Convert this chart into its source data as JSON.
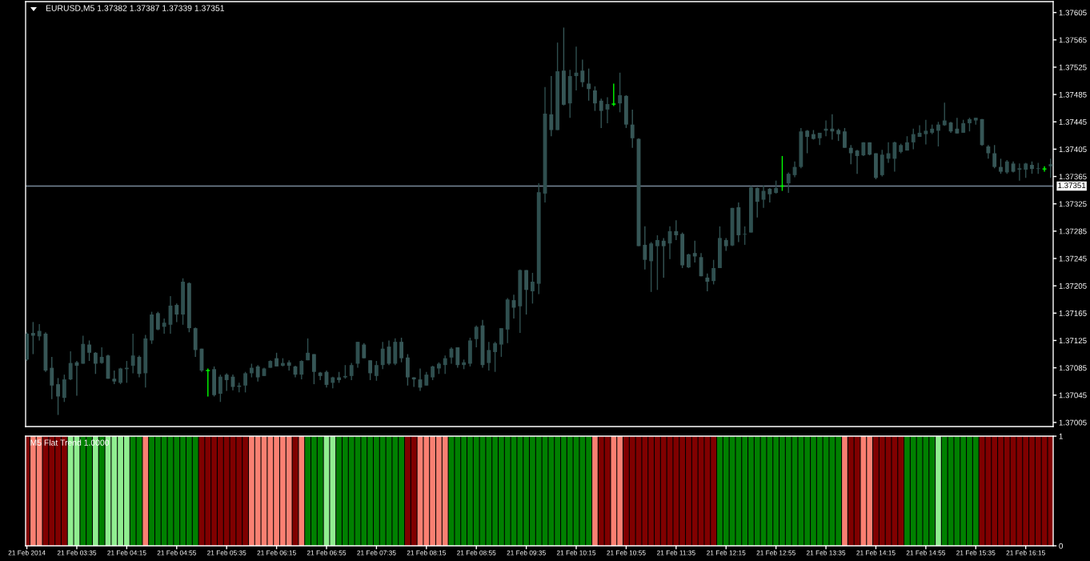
{
  "chart_data": [
    {
      "type": "candlestick",
      "title": "EURUSD,M5 1.37382 1.37387 1.37339 1.37351",
      "x": [
        "2014-02-21T02:55",
        "2014-02-21T03:00",
        "2014-02-21T03:05",
        "2014-02-21T03:10",
        "2014-02-21T03:15",
        "2014-02-21T03:20",
        "2014-02-21T03:25",
        "2014-02-21T03:30",
        "2014-02-21T03:35",
        "2014-02-21T03:40",
        "2014-02-21T03:45",
        "2014-02-21T03:50",
        "2014-02-21T03:55",
        "2014-02-21T04:00",
        "2014-02-21T04:05",
        "2014-02-21T04:10",
        "2014-02-21T04:15",
        "2014-02-21T04:20",
        "2014-02-21T04:25",
        "2014-02-21T04:30",
        "2014-02-21T04:35",
        "2014-02-21T04:40",
        "2014-02-21T04:45",
        "2014-02-21T04:50",
        "2014-02-21T04:55",
        "2014-02-21T05:00",
        "2014-02-21T05:05",
        "2014-02-21T05:10",
        "2014-02-21T05:15",
        "2014-02-21T05:20",
        "2014-02-21T05:25",
        "2014-02-21T05:30",
        "2014-02-21T05:35",
        "2014-02-21T05:40",
        "2014-02-21T05:45",
        "2014-02-21T05:50",
        "2014-02-21T05:55",
        "2014-02-21T06:00",
        "2014-02-21T06:05",
        "2014-02-21T06:10",
        "2014-02-21T06:15",
        "2014-02-21T06:20",
        "2014-02-21T06:25",
        "2014-02-21T06:30",
        "2014-02-21T06:35",
        "2014-02-21T06:40",
        "2014-02-21T06:45",
        "2014-02-21T06:50",
        "2014-02-21T06:55",
        "2014-02-21T07:00",
        "2014-02-21T07:05",
        "2014-02-21T07:10",
        "2014-02-21T07:15",
        "2014-02-21T07:20",
        "2014-02-21T07:25",
        "2014-02-21T07:30",
        "2014-02-21T07:35",
        "2014-02-21T07:40",
        "2014-02-21T07:45",
        "2014-02-21T07:50",
        "2014-02-21T07:55",
        "2014-02-21T08:00",
        "2014-02-21T08:05",
        "2014-02-21T08:10",
        "2014-02-21T08:15",
        "2014-02-21T08:20",
        "2014-02-21T08:25",
        "2014-02-21T08:30",
        "2014-02-21T08:35",
        "2014-02-21T08:40",
        "2014-02-21T08:45",
        "2014-02-21T08:50",
        "2014-02-21T08:55",
        "2014-02-21T09:00",
        "2014-02-21T09:05",
        "2014-02-21T09:10",
        "2014-02-21T09:15",
        "2014-02-21T09:20",
        "2014-02-21T09:25",
        "2014-02-21T09:30",
        "2014-02-21T09:35",
        "2014-02-21T09:40",
        "2014-02-21T09:45",
        "2014-02-21T09:50",
        "2014-02-21T09:55",
        "2014-02-21T10:00",
        "2014-02-21T10:05",
        "2014-02-21T10:10",
        "2014-02-21T10:15",
        "2014-02-21T10:20",
        "2014-02-21T10:25",
        "2014-02-21T10:30",
        "2014-02-21T10:35",
        "2014-02-21T10:40",
        "2014-02-21T10:45",
        "2014-02-21T10:50",
        "2014-02-21T10:55",
        "2014-02-21T11:00",
        "2014-02-21T11:05",
        "2014-02-21T11:10",
        "2014-02-21T11:15",
        "2014-02-21T11:20",
        "2014-02-21T11:25",
        "2014-02-21T11:30",
        "2014-02-21T11:35",
        "2014-02-21T11:40",
        "2014-02-21T11:45",
        "2014-02-21T11:50",
        "2014-02-21T11:55",
        "2014-02-21T12:00",
        "2014-02-21T12:05",
        "2014-02-21T12:10",
        "2014-02-21T12:15",
        "2014-02-21T12:20",
        "2014-02-21T12:25",
        "2014-02-21T12:30",
        "2014-02-21T12:35",
        "2014-02-21T12:40",
        "2014-02-21T12:45",
        "2014-02-21T12:50",
        "2014-02-21T12:55",
        "2014-02-21T13:00",
        "2014-02-21T13:05",
        "2014-02-21T13:10",
        "2014-02-21T13:15",
        "2014-02-21T13:20",
        "2014-02-21T13:25",
        "2014-02-21T13:30",
        "2014-02-21T13:35",
        "2014-02-21T13:40",
        "2014-02-21T13:45",
        "2014-02-21T13:50",
        "2014-02-21T13:55",
        "2014-02-21T14:00",
        "2014-02-21T14:05",
        "2014-02-21T14:10",
        "2014-02-21T14:15",
        "2014-02-21T14:20",
        "2014-02-21T14:25",
        "2014-02-21T14:30",
        "2014-02-21T14:35",
        "2014-02-21T14:40",
        "2014-02-21T14:45",
        "2014-02-21T14:50",
        "2014-02-21T14:55",
        "2014-02-21T15:00",
        "2014-02-21T15:05",
        "2014-02-21T15:10",
        "2014-02-21T15:15",
        "2014-02-21T15:20",
        "2014-02-21T15:25",
        "2014-02-21T15:30",
        "2014-02-21T15:35",
        "2014-02-21T15:40",
        "2014-02-21T15:45",
        "2014-02-21T15:50",
        "2014-02-21T15:55",
        "2014-02-21T16:00",
        "2014-02-21T16:05",
        "2014-02-21T16:10",
        "2014-02-21T16:15",
        "2014-02-21T16:20",
        "2014-02-21T16:25",
        "2014-02-21T16:30",
        "2014-02-21T16:35"
      ],
      "ohlc": [
        [
          1.37097,
          1.37137,
          1.37095,
          1.37135
        ],
        [
          1.37136,
          1.37152,
          1.37105,
          1.37132
        ],
        [
          1.37131,
          1.37149,
          1.37125,
          1.37139
        ],
        [
          1.37135,
          1.37137,
          1.37079,
          1.37081
        ],
        [
          1.37085,
          1.37101,
          1.37039,
          1.37059
        ],
        [
          1.37061,
          1.3707,
          1.37016,
          1.37043
        ],
        [
          1.37041,
          1.37075,
          1.37035,
          1.37068
        ],
        [
          1.37068,
          1.37109,
          1.37067,
          1.37092
        ],
        [
          1.37093,
          1.37095,
          1.37044,
          1.37088
        ],
        [
          1.37091,
          1.37132,
          1.37091,
          1.3712
        ],
        [
          1.37119,
          1.37125,
          1.37095,
          1.37107
        ],
        [
          1.37107,
          1.37108,
          1.37076,
          1.37091
        ],
        [
          1.37092,
          1.37115,
          1.37091,
          1.37101
        ],
        [
          1.37103,
          1.37104,
          1.37069,
          1.37069
        ],
        [
          1.37069,
          1.37081,
          1.37061,
          1.37065
        ],
        [
          1.37063,
          1.37085,
          1.37061,
          1.37084
        ],
        [
          1.37083,
          1.37095,
          1.37063,
          1.37085
        ],
        [
          1.37088,
          1.37135,
          1.37077,
          1.37103
        ],
        [
          1.37101,
          1.37103,
          1.37071,
          1.37076
        ],
        [
          1.37077,
          1.37133,
          1.37056,
          1.37128
        ],
        [
          1.37125,
          1.37167,
          1.3712,
          1.37163
        ],
        [
          1.37165,
          1.37167,
          1.3714,
          1.37141
        ],
        [
          1.37145,
          1.37157,
          1.37135,
          1.37151
        ],
        [
          1.37148,
          1.3719,
          1.37135,
          1.37176
        ],
        [
          1.37177,
          1.37179,
          1.37152,
          1.37163
        ],
        [
          1.37163,
          1.37216,
          1.37148,
          1.37211
        ],
        [
          1.37209,
          1.3721,
          1.37137,
          1.37143
        ],
        [
          1.37143,
          1.37144,
          1.37101,
          1.37111
        ],
        [
          1.37113,
          1.37113,
          1.37079,
          1.37081
        ],
        [
          1.37081,
          1.37084,
          1.37043,
          1.37081
        ],
        [
          1.37083,
          1.37087,
          1.37043,
          1.37045
        ],
        [
          1.37047,
          1.37075,
          1.37035,
          1.37072
        ],
        [
          1.37075,
          1.37077,
          1.37051,
          1.37067
        ],
        [
          1.37072,
          1.37075,
          1.37052,
          1.37057
        ],
        [
          1.37057,
          1.37063,
          1.37049,
          1.37059
        ],
        [
          1.37059,
          1.37079,
          1.37049,
          1.37077
        ],
        [
          1.37077,
          1.37091,
          1.37071,
          1.37085
        ],
        [
          1.37087,
          1.37089,
          1.37065,
          1.37071
        ],
        [
          1.37073,
          1.37085,
          1.37073,
          1.37084
        ],
        [
          1.37085,
          1.37096,
          1.37085,
          1.37095
        ],
        [
          1.37099,
          1.37107,
          1.37087,
          1.37087
        ],
        [
          1.37088,
          1.37099,
          1.37087,
          1.37092
        ],
        [
          1.37093,
          1.37096,
          1.37081,
          1.37088
        ],
        [
          1.37087,
          1.37088,
          1.37071,
          1.37075
        ],
        [
          1.37075,
          1.37096,
          1.37068,
          1.37095
        ],
        [
          1.37096,
          1.37128,
          1.37096,
          1.37107
        ],
        [
          1.37105,
          1.37105,
          1.37061,
          1.37079
        ],
        [
          1.37078,
          1.37079,
          1.37067,
          1.37073
        ],
        [
          1.37079,
          1.37081,
          1.37056,
          1.3706
        ],
        [
          1.37063,
          1.37072,
          1.37055,
          1.37071
        ],
        [
          1.37071,
          1.37079,
          1.37063,
          1.37067
        ],
        [
          1.37071,
          1.37089,
          1.37069,
          1.37073
        ],
        [
          1.37073,
          1.37092,
          1.37067,
          1.37089
        ],
        [
          1.37091,
          1.37123,
          1.37085,
          1.37123
        ],
        [
          1.37119,
          1.37121,
          1.37099,
          1.37099
        ],
        [
          1.37096,
          1.37096,
          1.37067,
          1.37077
        ],
        [
          1.37073,
          1.37095,
          1.37066,
          1.37089
        ],
        [
          1.37089,
          1.37123,
          1.37083,
          1.37113
        ],
        [
          1.37116,
          1.37125,
          1.37089,
          1.37091
        ],
        [
          1.37091,
          1.37128,
          1.37089,
          1.37123
        ],
        [
          1.37123,
          1.37129,
          1.37093,
          1.37099
        ],
        [
          1.371,
          1.37105,
          1.37059,
          1.37071
        ],
        [
          1.37071,
          1.37071,
          1.37057,
          1.37068
        ],
        [
          1.37068,
          1.37084,
          1.37051,
          1.37056
        ],
        [
          1.37059,
          1.37079,
          1.37059,
          1.37075
        ],
        [
          1.37071,
          1.37088,
          1.37067,
          1.37087
        ],
        [
          1.37084,
          1.37093,
          1.37076,
          1.37091
        ],
        [
          1.37089,
          1.37103,
          1.37076,
          1.37099
        ],
        [
          1.371,
          1.37115,
          1.37091,
          1.37113
        ],
        [
          1.37115,
          1.37115,
          1.37085,
          1.37089
        ],
        [
          1.37089,
          1.37097,
          1.37083,
          1.37093
        ],
        [
          1.37091,
          1.37129,
          1.37087,
          1.37125
        ],
        [
          1.37127,
          1.37147,
          1.37115,
          1.37145
        ],
        [
          1.37147,
          1.37155,
          1.37085,
          1.37089
        ],
        [
          1.37092,
          1.37123,
          1.37081,
          1.37111
        ],
        [
          1.37108,
          1.37123,
          1.37079,
          1.37121
        ],
        [
          1.37119,
          1.37143,
          1.37101,
          1.37143
        ],
        [
          1.37141,
          1.37187,
          1.37121,
          1.37185
        ],
        [
          1.37184,
          1.37192,
          1.37157,
          1.37173
        ],
        [
          1.37175,
          1.37229,
          1.37136,
          1.37228
        ],
        [
          1.37228,
          1.37228,
          1.37163,
          1.37199
        ],
        [
          1.37197,
          1.37224,
          1.37179,
          1.37211
        ],
        [
          1.37208,
          1.37355,
          1.37193,
          1.37342
        ],
        [
          1.3734,
          1.37496,
          1.37327,
          1.37457
        ],
        [
          1.37456,
          1.37512,
          1.37424,
          1.37433
        ],
        [
          1.37433,
          1.37561,
          1.37433,
          1.37519
        ],
        [
          1.3752,
          1.37583,
          1.37469,
          1.3747
        ],
        [
          1.37472,
          1.37521,
          1.37451,
          1.37512
        ],
        [
          1.37512,
          1.37555,
          1.37491,
          1.37517
        ],
        [
          1.3752,
          1.37536,
          1.37496,
          1.37503
        ],
        [
          1.37501,
          1.37523,
          1.37476,
          1.37493
        ],
        [
          1.37491,
          1.37497,
          1.37461,
          1.37472
        ],
        [
          1.37476,
          1.37479,
          1.37436,
          1.37461
        ],
        [
          1.37463,
          1.37481,
          1.37443,
          1.37471
        ],
        [
          1.37471,
          1.37501,
          1.37468,
          1.37471
        ],
        [
          1.37472,
          1.37517,
          1.37459,
          1.37484
        ],
        [
          1.37483,
          1.37484,
          1.37436,
          1.37441
        ],
        [
          1.37441,
          1.37463,
          1.37407,
          1.37421
        ],
        [
          1.3742,
          1.37421,
          1.37263,
          1.37263
        ],
        [
          1.37265,
          1.37292,
          1.37229,
          1.37243
        ],
        [
          1.37241,
          1.37269,
          1.37196,
          1.37267
        ],
        [
          1.37263,
          1.37279,
          1.37199,
          1.37272
        ],
        [
          1.37271,
          1.37275,
          1.37217,
          1.37263
        ],
        [
          1.37267,
          1.37292,
          1.37244,
          1.37285
        ],
        [
          1.37285,
          1.37301,
          1.37272,
          1.37279
        ],
        [
          1.37281,
          1.37283,
          1.37231,
          1.37235
        ],
        [
          1.37232,
          1.37252,
          1.37231,
          1.37251
        ],
        [
          1.37253,
          1.37271,
          1.37239,
          1.37248
        ],
        [
          1.37247,
          1.37253,
          1.37219,
          1.37219
        ],
        [
          1.37217,
          1.37223,
          1.37197,
          1.37211
        ],
        [
          1.37212,
          1.37243,
          1.37207,
          1.37231
        ],
        [
          1.37231,
          1.37292,
          1.37231,
          1.37275
        ],
        [
          1.37272,
          1.37275,
          1.37256,
          1.37263
        ],
        [
          1.37264,
          1.37319,
          1.37263,
          1.37319
        ],
        [
          1.3732,
          1.37327,
          1.37269,
          1.37279
        ],
        [
          1.3728,
          1.37292,
          1.37265,
          1.37281
        ],
        [
          1.37283,
          1.37351,
          1.37283,
          1.37349
        ],
        [
          1.37348,
          1.37349,
          1.37305,
          1.37328
        ],
        [
          1.37331,
          1.37352,
          1.37319,
          1.37344
        ],
        [
          1.37347,
          1.37348,
          1.37327,
          1.37339
        ],
        [
          1.37341,
          1.37359,
          1.3734,
          1.37348
        ],
        [
          1.37351,
          1.37395,
          1.37344,
          1.37351
        ],
        [
          1.37355,
          1.37371,
          1.37341,
          1.37369
        ],
        [
          1.37367,
          1.37387,
          1.37364,
          1.37379
        ],
        [
          1.37379,
          1.37436,
          1.37377,
          1.37431
        ],
        [
          1.37432,
          1.37433,
          1.37399,
          1.37423
        ],
        [
          1.37427,
          1.37433,
          1.37419,
          1.3742
        ],
        [
          1.37421,
          1.37429,
          1.37411,
          1.37429
        ],
        [
          1.37432,
          1.37447,
          1.37424,
          1.37435
        ],
        [
          1.37435,
          1.37456,
          1.37419,
          1.37431
        ],
        [
          1.37433,
          1.37435,
          1.37417,
          1.37427
        ],
        [
          1.37431,
          1.37436,
          1.37407,
          1.37407
        ],
        [
          1.37407,
          1.37411,
          1.37383,
          1.37399
        ],
        [
          1.37403,
          1.37404,
          1.37369,
          1.37395
        ],
        [
          1.37396,
          1.37415,
          1.37395,
          1.37415
        ],
        [
          1.37415,
          1.37415,
          1.37396,
          1.37397
        ],
        [
          1.37399,
          1.37399,
          1.37361,
          1.37363
        ],
        [
          1.37367,
          1.37404,
          1.37365,
          1.37397
        ],
        [
          1.37391,
          1.37415,
          1.37385,
          1.37399
        ],
        [
          1.37391,
          1.37416,
          1.37372,
          1.37415
        ],
        [
          1.37401,
          1.37413,
          1.37399,
          1.37411
        ],
        [
          1.37403,
          1.37424,
          1.37403,
          1.37415
        ],
        [
          1.37415,
          1.37435,
          1.37405,
          1.37427
        ],
        [
          1.37423,
          1.3744,
          1.37423,
          1.37429
        ],
        [
          1.37427,
          1.37448,
          1.37412,
          1.37432
        ],
        [
          1.37429,
          1.37441,
          1.37427,
          1.37435
        ],
        [
          1.37432,
          1.37445,
          1.37409,
          1.37441
        ],
        [
          1.3744,
          1.37473,
          1.37439,
          1.37447
        ],
        [
          1.37444,
          1.37445,
          1.37429,
          1.37431
        ],
        [
          1.37435,
          1.37451,
          1.37428,
          1.37428
        ],
        [
          1.37429,
          1.37448,
          1.37429,
          1.37443
        ],
        [
          1.37443,
          1.37451,
          1.37431,
          1.37449
        ],
        [
          1.37447,
          1.37451,
          1.37441,
          1.37451
        ],
        [
          1.37449,
          1.37449,
          1.3741,
          1.37411
        ],
        [
          1.37409,
          1.37411,
          1.37391,
          1.37399
        ],
        [
          1.37399,
          1.37411,
          1.37377,
          1.37379
        ],
        [
          1.37379,
          1.37391,
          1.37369,
          1.37372
        ],
        [
          1.37371,
          1.37389,
          1.37369,
          1.37387
        ],
        [
          1.37384,
          1.37387,
          1.37371,
          1.37372
        ],
        [
          1.37375,
          1.37384,
          1.37359,
          1.37377
        ],
        [
          1.37375,
          1.37385,
          1.37363,
          1.37384
        ],
        [
          1.37382,
          1.37387,
          1.37369,
          1.37376
        ],
        [
          1.37376,
          1.37385,
          1.37369,
          1.37377
        ],
        [
          1.37376,
          1.3738,
          1.37372,
          1.37376
        ],
        [
          1.3738,
          1.37391,
          1.37363,
          1.37383
        ]
      ],
      "colors": [
        "#2f4f4f",
        "#365656",
        "#2f4f4f",
        "#365656",
        "#365656",
        "#365656",
        "#2f4f4f",
        "#2f4f4f",
        "#365656",
        "#2f4f4f",
        "#365656",
        "#365656",
        "#2f4f4f",
        "#365656",
        "#365656",
        "#2f4f4f",
        "#2f4f4f",
        "#2f4f4f",
        "#365656",
        "#2f4f4f",
        "#2f4f4f",
        "#365656",
        "#2f4f4f",
        "#2f4f4f",
        "#365656",
        "#2f4f4f",
        "#365656",
        "#365656",
        "#365656",
        "#00ff00",
        "#365656",
        "#2f4f4f",
        "#365656",
        "#365656",
        "#2f4f4f",
        "#2f4f4f",
        "#2f4f4f",
        "#365656",
        "#2f4f4f",
        "#2f4f4f",
        "#365656",
        "#2f4f4f",
        "#365656",
        "#365656",
        "#2f4f4f",
        "#2f4f4f",
        "#365656",
        "#365656",
        "#365656",
        "#2f4f4f",
        "#365656",
        "#2f4f4f",
        "#2f4f4f",
        "#2f4f4f",
        "#365656",
        "#365656",
        "#2f4f4f",
        "#2f4f4f",
        "#365656",
        "#2f4f4f",
        "#365656",
        "#365656",
        "#365656",
        "#365656",
        "#2f4f4f",
        "#2f4f4f",
        "#2f4f4f",
        "#2f4f4f",
        "#2f4f4f",
        "#365656",
        "#2f4f4f",
        "#2f4f4f",
        "#2f4f4f",
        "#365656",
        "#2f4f4f",
        "#2f4f4f",
        "#2f4f4f",
        "#2f4f4f",
        "#365656",
        "#2f4f4f",
        "#365656",
        "#2f4f4f",
        "#2f4f4f",
        "#2f4f4f",
        "#365656",
        "#2f4f4f",
        "#365656",
        "#2f4f4f",
        "#2f4f4f",
        "#365656",
        "#365656",
        "#365656",
        "#365656",
        "#2f4f4f",
        "#00ff00",
        "#2f4f4f",
        "#365656",
        "#365656",
        "#365656",
        "#365656",
        "#2f4f4f",
        "#2f4f4f",
        "#365656",
        "#2f4f4f",
        "#365656",
        "#365656",
        "#2f4f4f",
        "#365656",
        "#365656",
        "#365656",
        "#2f4f4f",
        "#2f4f4f",
        "#365656",
        "#2f4f4f",
        "#365656",
        "#2f4f4f",
        "#2f4f4f",
        "#365656",
        "#2f4f4f",
        "#365656",
        "#2f4f4f",
        "#00ff00",
        "#2f4f4f",
        "#2f4f4f",
        "#2f4f4f",
        "#365656",
        "#365656",
        "#2f4f4f",
        "#2f4f4f",
        "#365656",
        "#365656",
        "#365656",
        "#365656",
        "#365656",
        "#2f4f4f",
        "#365656",
        "#365656",
        "#2f4f4f",
        "#2f4f4f",
        "#2f4f4f",
        "#2f4f4f",
        "#2f4f4f",
        "#2f4f4f",
        "#2f4f4f",
        "#2f4f4f",
        "#2f4f4f",
        "#2f4f4f",
        "#2f4f4f",
        "#365656",
        "#365656",
        "#2f4f4f",
        "#2f4f4f",
        "#2f4f4f",
        "#365656",
        "#365656",
        "#365656",
        "#365656",
        "#2f4f4f",
        "#365656",
        "#2f4f4f",
        "#2f4f4f",
        "#365656",
        "#2f4f4f",
        "#00ff00",
        "#2f4f4f"
      ],
      "xlim": [
        "2014-02-21T02:54",
        "2014-02-21T16:37"
      ],
      "ylim": [
        1.36999,
        1.37621
      ],
      "yticks": [
        1.37005,
        1.37045,
        1.37085,
        1.37125,
        1.37165,
        1.37205,
        1.37245,
        1.37285,
        1.37325,
        1.37365,
        1.37405,
        1.37445,
        1.37485,
        1.37525,
        1.37565,
        1.37605
      ],
      "ref_lines": [
        {
          "axis": "y",
          "value": 1.37351,
          "label": "1.37351",
          "color": "#778899"
        }
      ],
      "tick_labels": "y"
    },
    {
      "type": "bar",
      "title": "M5 Flat Trend 1.0000",
      "x": [
        "2014-02-21T02:55",
        "2014-02-21T03:00",
        "2014-02-21T03:05",
        "2014-02-21T03:10",
        "2014-02-21T03:15",
        "2014-02-21T03:20",
        "2014-02-21T03:25",
        "2014-02-21T03:30",
        "2014-02-21T03:35",
        "2014-02-21T03:40",
        "2014-02-21T03:45",
        "2014-02-21T03:50",
        "2014-02-21T03:55",
        "2014-02-21T04:00",
        "2014-02-21T04:05",
        "2014-02-21T04:10",
        "2014-02-21T04:15",
        "2014-02-21T04:20",
        "2014-02-21T04:25",
        "2014-02-21T04:30",
        "2014-02-21T04:35",
        "2014-02-21T04:40",
        "2014-02-21T04:45",
        "2014-02-21T04:50",
        "2014-02-21T04:55",
        "2014-02-21T05:00",
        "2014-02-21T05:05",
        "2014-02-21T05:10",
        "2014-02-21T05:15",
        "2014-02-21T05:20",
        "2014-02-21T05:25",
        "2014-02-21T05:30",
        "2014-02-21T05:35",
        "2014-02-21T05:40",
        "2014-02-21T05:45",
        "2014-02-21T05:50",
        "2014-02-21T05:55",
        "2014-02-21T06:00",
        "2014-02-21T06:05",
        "2014-02-21T06:10",
        "2014-02-21T06:15",
        "2014-02-21T06:20",
        "2014-02-21T06:25",
        "2014-02-21T06:30",
        "2014-02-21T06:35",
        "2014-02-21T06:40",
        "2014-02-21T06:45",
        "2014-02-21T06:50",
        "2014-02-21T06:55",
        "2014-02-21T07:00",
        "2014-02-21T07:05",
        "2014-02-21T07:10",
        "2014-02-21T07:15",
        "2014-02-21T07:20",
        "2014-02-21T07:25",
        "2014-02-21T07:30",
        "2014-02-21T07:35",
        "2014-02-21T07:40",
        "2014-02-21T07:45",
        "2014-02-21T07:50",
        "2014-02-21T07:55",
        "2014-02-21T08:00",
        "2014-02-21T08:05",
        "2014-02-21T08:10",
        "2014-02-21T08:15",
        "2014-02-21T08:20",
        "2014-02-21T08:25",
        "2014-02-21T08:30",
        "2014-02-21T08:35",
        "2014-02-21T08:40",
        "2014-02-21T08:45",
        "2014-02-21T08:50",
        "2014-02-21T08:55",
        "2014-02-21T09:00",
        "2014-02-21T09:05",
        "2014-02-21T09:10",
        "2014-02-21T09:15",
        "2014-02-21T09:20",
        "2014-02-21T09:25",
        "2014-02-21T09:30",
        "2014-02-21T09:35",
        "2014-02-21T09:40",
        "2014-02-21T09:45",
        "2014-02-21T09:50",
        "2014-02-21T09:55",
        "2014-02-21T10:00",
        "2014-02-21T10:05",
        "2014-02-21T10:10",
        "2014-02-21T10:15",
        "2014-02-21T10:20",
        "2014-02-21T10:25",
        "2014-02-21T10:30",
        "2014-02-21T10:35",
        "2014-02-21T10:40",
        "2014-02-21T10:45",
        "2014-02-21T10:50",
        "2014-02-21T10:55",
        "2014-02-21T11:00",
        "2014-02-21T11:05",
        "2014-02-21T11:10",
        "2014-02-21T11:15",
        "2014-02-21T11:20",
        "2014-02-21T11:25",
        "2014-02-21T11:30",
        "2014-02-21T11:35",
        "2014-02-21T11:40",
        "2014-02-21T11:45",
        "2014-02-21T11:50",
        "2014-02-21T11:55",
        "2014-02-21T12:00",
        "2014-02-21T12:05",
        "2014-02-21T12:10",
        "2014-02-21T12:15",
        "2014-02-21T12:20",
        "2014-02-21T12:25",
        "2014-02-21T12:30",
        "2014-02-21T12:35",
        "2014-02-21T12:40",
        "2014-02-21T12:45",
        "2014-02-21T12:50",
        "2014-02-21T12:55",
        "2014-02-21T13:00",
        "2014-02-21T13:05",
        "2014-02-21T13:10",
        "2014-02-21T13:15",
        "2014-02-21T13:20",
        "2014-02-21T13:25",
        "2014-02-21T13:30",
        "2014-02-21T13:35",
        "2014-02-21T13:40",
        "2014-02-21T13:45",
        "2014-02-21T13:50",
        "2014-02-21T13:55",
        "2014-02-21T14:00",
        "2014-02-21T14:05",
        "2014-02-21T14:10",
        "2014-02-21T14:15",
        "2014-02-21T14:20",
        "2014-02-21T14:25",
        "2014-02-21T14:30",
        "2014-02-21T14:35",
        "2014-02-21T14:40",
        "2014-02-21T14:45",
        "2014-02-21T14:50",
        "2014-02-21T14:55",
        "2014-02-21T15:00",
        "2014-02-21T15:05",
        "2014-02-21T15:10",
        "2014-02-21T15:15",
        "2014-02-21T15:20",
        "2014-02-21T15:25",
        "2014-02-21T15:30",
        "2014-02-21T15:35",
        "2014-02-21T15:40",
        "2014-02-21T15:45",
        "2014-02-21T15:50",
        "2014-02-21T15:55",
        "2014-02-21T16:00",
        "2014-02-21T16:05",
        "2014-02-21T16:10",
        "2014-02-21T16:15",
        "2014-02-21T16:20",
        "2014-02-21T16:25",
        "2014-02-21T16:30",
        "2014-02-21T16:35"
      ],
      "values": [
        1,
        1,
        1,
        1,
        1,
        1,
        1,
        1,
        1,
        1,
        1,
        1,
        1,
        1,
        1,
        1,
        1,
        1,
        1,
        1,
        1,
        1,
        1,
        1,
        1,
        1,
        1,
        1,
        1,
        1,
        1,
        1,
        1,
        1,
        1,
        1,
        1,
        1,
        1,
        1,
        1,
        1,
        1,
        1,
        1,
        1,
        1,
        1,
        1,
        1,
        1,
        1,
        1,
        1,
        1,
        1,
        1,
        1,
        1,
        1,
        1,
        1,
        1,
        1,
        1,
        1,
        1,
        1,
        1,
        1,
        1,
        1,
        1,
        1,
        1,
        1,
        1,
        1,
        1,
        1,
        1,
        1,
        1,
        1,
        1,
        1,
        1,
        1,
        1,
        1,
        1,
        1,
        1,
        1,
        1,
        1,
        1,
        1,
        1,
        1,
        1,
        1,
        1,
        1,
        1,
        1,
        1,
        1,
        1,
        1,
        1,
        1,
        1,
        1,
        1,
        1,
        1,
        1,
        1,
        1,
        1,
        1,
        1,
        1,
        1,
        1,
        1,
        1,
        1,
        1,
        1,
        1,
        1,
        1,
        1,
        1,
        1,
        1,
        1,
        1,
        1,
        1,
        1,
        1,
        1,
        1,
        1,
        1,
        1,
        1,
        1,
        1,
        1,
        1,
        1,
        1,
        1,
        1,
        1,
        1,
        1,
        1,
        1,
        1,
        1
      ],
      "colors": [
        "#800000",
        "#fa8072",
        "#fa8072",
        "#800000",
        "#800000",
        "#800000",
        "#800000",
        "#90ee90",
        "#90ee90",
        "#008000",
        "#008000",
        "#90ee90",
        "#008000",
        "#90ee90",
        "#90ee90",
        "#90ee90",
        "#90ee90",
        "#008000",
        "#008000",
        "#fa8072",
        "#008000",
        "#008000",
        "#008000",
        "#008000",
        "#008000",
        "#008000",
        "#008000",
        "#008000",
        "#800000",
        "#800000",
        "#800000",
        "#800000",
        "#800000",
        "#800000",
        "#800000",
        "#800000",
        "#fa8072",
        "#fa8072",
        "#fa8072",
        "#fa8072",
        "#fa8072",
        "#fa8072",
        "#fa8072",
        "#800000",
        "#fa8072",
        "#008000",
        "#008000",
        "#008000",
        "#90ee90",
        "#90ee90",
        "#008000",
        "#008000",
        "#008000",
        "#008000",
        "#008000",
        "#008000",
        "#008000",
        "#008000",
        "#008000",
        "#008000",
        "#008000",
        "#800000",
        "#800000",
        "#fa8072",
        "#fa8072",
        "#fa8072",
        "#fa8072",
        "#fa8072",
        "#008000",
        "#008000",
        "#008000",
        "#008000",
        "#008000",
        "#008000",
        "#008000",
        "#008000",
        "#008000",
        "#008000",
        "#008000",
        "#008000",
        "#008000",
        "#008000",
        "#008000",
        "#008000",
        "#008000",
        "#008000",
        "#008000",
        "#008000",
        "#008000",
        "#008000",
        "#008000",
        "#fa8072",
        "#800000",
        "#800000",
        "#fa8072",
        "#fa8072",
        "#800000",
        "#800000",
        "#800000",
        "#800000",
        "#800000",
        "#800000",
        "#800000",
        "#800000",
        "#800000",
        "#800000",
        "#800000",
        "#800000",
        "#800000",
        "#800000",
        "#800000",
        "#008000",
        "#008000",
        "#008000",
        "#008000",
        "#008000",
        "#008000",
        "#008000",
        "#008000",
        "#008000",
        "#008000",
        "#008000",
        "#008000",
        "#008000",
        "#008000",
        "#008000",
        "#008000",
        "#008000",
        "#008000",
        "#008000",
        "#008000",
        "#fa8072",
        "#800000",
        "#800000",
        "#fa8072",
        "#fa8072",
        "#800000",
        "#800000",
        "#800000",
        "#800000",
        "#800000",
        "#008000",
        "#008000",
        "#008000",
        "#008000",
        "#008000",
        "#90ee90",
        "#008000",
        "#008000",
        "#008000",
        "#008000",
        "#008000",
        "#008000",
        "#800000",
        "#800000",
        "#800000",
        "#800000",
        "#800000",
        "#800000",
        "#800000",
        "#800000",
        "#800000",
        "#800000",
        "#800000",
        "#800000"
      ],
      "xlim": [
        "2014-02-21T02:54",
        "2014-02-21T16:37"
      ],
      "xticks": [
        {
          "value": "2014-02-21T02:55",
          "label": "21 Feb 2014"
        },
        {
          "value": "2014-02-21T03:35",
          "label": "21 Feb 03:35"
        },
        {
          "value": "2014-02-21T04:15",
          "label": "21 Feb 04:15"
        },
        {
          "value": "2014-02-21T04:55",
          "label": "21 Feb 04:55"
        },
        {
          "value": "2014-02-21T05:35",
          "label": "21 Feb 05:35"
        },
        {
          "value": "2014-02-21T06:15",
          "label": "21 Feb 06:15"
        },
        {
          "value": "2014-02-21T06:55",
          "label": "21 Feb 06:55"
        },
        {
          "value": "2014-02-21T07:35",
          "label": "21 Feb 07:35"
        },
        {
          "value": "2014-02-21T08:15",
          "label": "21 Feb 08:15"
        },
        {
          "value": "2014-02-21T08:55",
          "label": "21 Feb 08:55"
        },
        {
          "value": "2014-02-21T09:35",
          "label": "21 Feb 09:35"
        },
        {
          "value": "2014-02-21T10:15",
          "label": "21 Feb 10:15"
        },
        {
          "value": "2014-02-21T10:55",
          "label": "21 Feb 10:55"
        },
        {
          "value": "2014-02-21T11:35",
          "label": "21 Feb 11:35"
        },
        {
          "value": "2014-02-21T12:15",
          "label": "21 Feb 12:15"
        },
        {
          "value": "2014-02-21T12:55",
          "label": "21 Feb 12:55"
        },
        {
          "value": "2014-02-21T13:35",
          "label": "21 Feb 13:35"
        },
        {
          "value": "2014-02-21T14:15",
          "label": "21 Feb 14:15"
        },
        {
          "value": "2014-02-21T14:55",
          "label": "21 Feb 14:55"
        },
        {
          "value": "2014-02-21T15:35",
          "label": "21 Feb 15:35"
        },
        {
          "value": "2014-02-21T16:15",
          "label": "21 Feb 16:15"
        }
      ],
      "ylim": [
        0,
        1
      ],
      "yticks": [
        0,
        1
      ]
    }
  ]
}
